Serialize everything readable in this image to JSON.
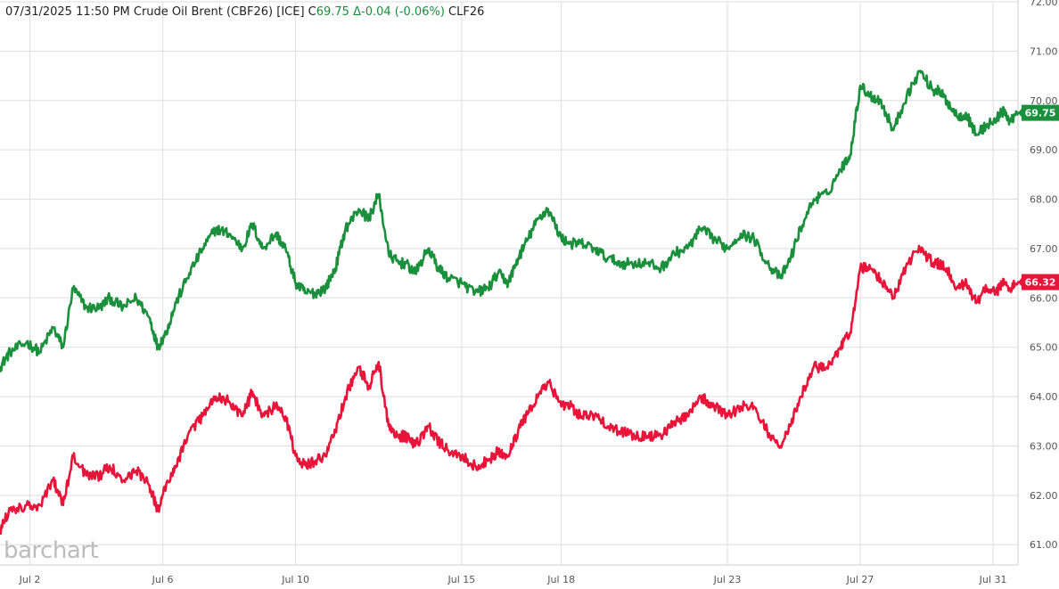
{
  "header": {
    "date": "07/31/2025",
    "time": "11:50 PM",
    "instrument": "Crude Oil Brent (CBF26) [ICE]",
    "close_prefix": "C",
    "close_value": "69.75",
    "change_prefix": "Δ",
    "change_value": "-0.04 (-0.06%)",
    "symbol": "CLF26"
  },
  "watermark": "barchart",
  "colors": {
    "up": "#1a8f3c",
    "down": "#e8143a",
    "grid": "#dddddd",
    "axis_text": "#555555",
    "header_text": "#222222"
  },
  "chart_data": {
    "type": "line",
    "title": "",
    "xlabel": "",
    "ylabel": "",
    "ylim": [
      60.3,
      72.0
    ],
    "y_ticks": [
      "61.00",
      "62.00",
      "63.00",
      "64.00",
      "65.00",
      "66.00",
      "67.00",
      "68.00",
      "69.00",
      "70.00",
      "71.00",
      "72.00"
    ],
    "x_range": [
      1.1,
      31.75
    ],
    "x_ticks": [
      {
        "label": "Jul 2",
        "day": 2
      },
      {
        "label": "Jul 6",
        "day": 6
      },
      {
        "label": "Jul 10",
        "day": 10
      },
      {
        "label": "Jul 15",
        "day": 15
      },
      {
        "label": "Jul 18",
        "day": 18
      },
      {
        "label": "Jul 23",
        "day": 23
      },
      {
        "label": "Jul 27",
        "day": 27
      },
      {
        "label": "Jul 31",
        "day": 31
      }
    ],
    "grid": true,
    "last_value_labels": [
      "69.75",
      "66.32"
    ],
    "series": [
      {
        "color": "#1a8f3c",
        "x": [
          1.1,
          1.4,
          1.9,
          2.3,
          2.7,
          3.0,
          3.3,
          3.7,
          4.1,
          4.4,
          4.8,
          5.2,
          5.6,
          5.85,
          6.1,
          6.4,
          6.8,
          7.2,
          7.6,
          8.0,
          8.4,
          8.7,
          9.0,
          9.4,
          9.7,
          10.0,
          10.3,
          10.6,
          10.9,
          11.2,
          11.5,
          11.9,
          12.2,
          12.5,
          12.8,
          13.1,
          13.3,
          13.6,
          14.0,
          14.3,
          14.6,
          15.0,
          15.4,
          15.8,
          16.1,
          16.4,
          16.7,
          17.0,
          17.3,
          17.6,
          18.0,
          18.3,
          18.6,
          19.0,
          19.4,
          19.8,
          20.2,
          20.6,
          21.0,
          21.4,
          21.8,
          22.2,
          22.6,
          23.0,
          23.4,
          23.8,
          24.2,
          24.6,
          24.9,
          25.2,
          25.6,
          26.0,
          26.4,
          26.7,
          27.0,
          27.3,
          27.6,
          28.0,
          28.4,
          28.8,
          29.2,
          29.35,
          29.6,
          29.9,
          30.2,
          30.5,
          30.8,
          31.1,
          31.25,
          31.5,
          31.75
        ],
        "values": [
          64.6,
          64.9,
          65.1,
          64.9,
          65.4,
          65.0,
          66.2,
          65.8,
          65.8,
          66.0,
          65.8,
          66.0,
          65.6,
          65.0,
          65.3,
          65.9,
          66.5,
          67.0,
          67.4,
          67.3,
          67.0,
          67.5,
          67.0,
          67.3,
          67.0,
          66.3,
          66.1,
          66.1,
          66.2,
          66.6,
          67.4,
          67.8,
          67.6,
          68.1,
          66.9,
          66.7,
          66.7,
          66.5,
          67.0,
          66.6,
          66.4,
          66.3,
          66.1,
          66.2,
          66.5,
          66.3,
          66.8,
          67.2,
          67.6,
          67.8,
          67.2,
          67.1,
          67.1,
          67.0,
          66.8,
          66.7,
          66.7,
          66.7,
          66.6,
          66.9,
          67.0,
          67.4,
          67.2,
          67.0,
          67.3,
          67.2,
          66.7,
          66.4,
          66.8,
          67.4,
          68.0,
          68.1,
          68.6,
          68.9,
          70.3,
          70.1,
          70.0,
          69.4,
          70.1,
          70.6,
          70.2,
          70.2,
          70.0,
          69.7,
          69.7,
          69.3,
          69.5,
          69.6,
          69.8,
          69.6,
          69.75
        ]
      },
      {
        "color": "#e8143a",
        "x": [
          1.1,
          1.4,
          1.9,
          2.3,
          2.7,
          3.0,
          3.3,
          3.7,
          4.1,
          4.4,
          4.8,
          5.2,
          5.6,
          5.85,
          6.1,
          6.4,
          6.8,
          7.2,
          7.6,
          8.0,
          8.4,
          8.7,
          9.0,
          9.4,
          9.7,
          10.0,
          10.3,
          10.6,
          10.9,
          11.2,
          11.5,
          11.9,
          12.2,
          12.5,
          12.8,
          13.1,
          13.3,
          13.6,
          14.0,
          14.3,
          14.6,
          15.0,
          15.4,
          15.8,
          16.1,
          16.4,
          16.7,
          17.0,
          17.3,
          17.6,
          18.0,
          18.3,
          18.6,
          19.0,
          19.4,
          19.8,
          20.2,
          20.6,
          21.0,
          21.4,
          21.8,
          22.2,
          22.6,
          23.0,
          23.4,
          23.8,
          24.2,
          24.6,
          24.9,
          25.2,
          25.6,
          26.0,
          26.4,
          26.7,
          27.0,
          27.3,
          27.6,
          28.0,
          28.4,
          28.8,
          29.2,
          29.35,
          29.6,
          29.9,
          30.2,
          30.5,
          30.8,
          31.1,
          31.25,
          31.5,
          31.75
        ],
        "values": [
          61.3,
          61.7,
          61.8,
          61.8,
          62.3,
          61.8,
          62.8,
          62.4,
          62.4,
          62.6,
          62.3,
          62.5,
          62.2,
          61.7,
          62.2,
          62.6,
          63.3,
          63.6,
          64.0,
          63.9,
          63.6,
          64.1,
          63.6,
          63.8,
          63.6,
          62.8,
          62.6,
          62.7,
          62.8,
          63.3,
          64.0,
          64.6,
          64.2,
          64.7,
          63.4,
          63.2,
          63.2,
          63.0,
          63.4,
          63.1,
          62.9,
          62.8,
          62.6,
          62.7,
          62.9,
          62.8,
          63.3,
          63.7,
          64.0,
          64.3,
          63.8,
          63.8,
          63.6,
          63.6,
          63.4,
          63.3,
          63.2,
          63.2,
          63.2,
          63.5,
          63.6,
          64.0,
          63.8,
          63.6,
          63.8,
          63.8,
          63.3,
          63.0,
          63.4,
          64.0,
          64.6,
          64.6,
          65.0,
          65.3,
          66.6,
          66.6,
          66.4,
          66.0,
          66.7,
          67.0,
          66.7,
          66.7,
          66.6,
          66.2,
          66.3,
          65.9,
          66.2,
          66.1,
          66.3,
          66.2,
          66.32
        ]
      }
    ]
  }
}
